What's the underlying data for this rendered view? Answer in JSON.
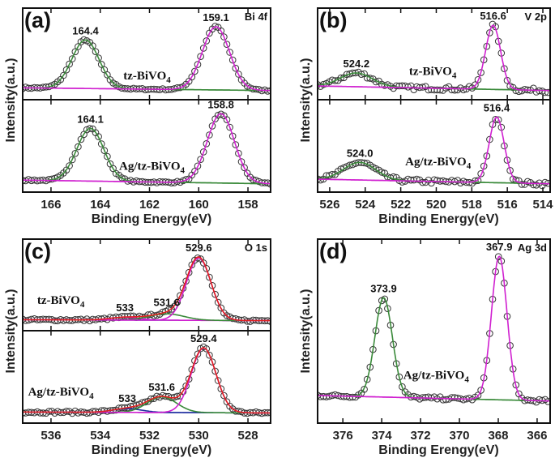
{
  "chart_data": [
    {
      "type": "line",
      "panel": "(a)",
      "element": "Bi 4f",
      "xlabel": "Binding Energy(eV)",
      "ylabel": "Intensity(a.u.)",
      "xlim": [
        167.15,
        157.08
      ],
      "xaxis_reversed": true,
      "xticks": [
        "166",
        "164",
        "162",
        "160",
        "158"
      ],
      "subplots": [
        {
          "sample": {
            "text": "tz-BiVO",
            "sub": "4"
          },
          "baseline": [
            0.13,
            0.1
          ],
          "envelope": false,
          "peaks": [
            {
              "center": 164.6,
              "height": 0.53,
              "sigma": 0.55,
              "color": "#3a8a3a",
              "label": "164.4"
            },
            {
              "center": 159.3,
              "height": 0.69,
              "sigma": 0.55,
              "color": "#d020d0",
              "label": "159.1"
            }
          ]
        },
        {
          "sample": {
            "text": "Ag/tz-BiVO",
            "sub": "4"
          },
          "baseline": [
            0.13,
            0.09
          ],
          "envelope": false,
          "peaks": [
            {
              "center": 164.4,
              "height": 0.57,
              "sigma": 0.55,
              "color": "#3a8a3a",
              "label": "164.1"
            },
            {
              "center": 159.1,
              "height": 0.75,
              "sigma": 0.55,
              "color": "#d020d0",
              "label": "158.8"
            }
          ]
        }
      ]
    },
    {
      "type": "line",
      "panel": "(b)",
      "element": "V 2p",
      "xlabel": "Binding Energy(eV)",
      "ylabel": "Intensity(a.u.)",
      "xlim": [
        526.68,
        513.59
      ],
      "xaxis_reversed": true,
      "xticks": [
        "526",
        "524",
        "522",
        "520",
        "518",
        "516",
        "514"
      ],
      "subplots": [
        {
          "sample": {
            "text": "tz-BiVO",
            "sub": "4"
          },
          "baseline": [
            0.15,
            0.1
          ],
          "envelope": false,
          "peaks": [
            {
              "center": 524.5,
              "height": 0.15,
              "sigma": 0.9,
              "color": "#3a8a3a",
              "label": "524.2"
            },
            {
              "center": 516.8,
              "height": 0.7,
              "sigma": 0.42,
              "color": "#d020d0",
              "label": "516.6"
            }
          ]
        },
        {
          "sample": {
            "text": "Ag/tz-BiVO",
            "sub": "4"
          },
          "baseline": [
            0.14,
            0.09
          ],
          "envelope": false,
          "peaks": [
            {
              "center": 524.3,
              "height": 0.19,
              "sigma": 0.9,
              "color": "#3a8a3a",
              "label": "524.0"
            },
            {
              "center": 516.6,
              "height": 0.71,
              "sigma": 0.42,
              "color": "#d020d0",
              "label": "516.4"
            }
          ]
        }
      ]
    },
    {
      "type": "line",
      "panel": "(c)",
      "element": "O 1s",
      "xlabel": "Binding Energy(eV)",
      "ylabel": "Intensity(a.u.)",
      "xlim": [
        537.15,
        527.08
      ],
      "xaxis_reversed": true,
      "xticks": [
        "536",
        "534",
        "532",
        "530",
        "528"
      ],
      "subplots": [
        {
          "sample": {
            "text": "tz-BiVO",
            "sub": "4"
          },
          "baseline": [
            0.12,
            0.11
          ],
          "envelope": true,
          "envelope_color": "#e02020",
          "baseline_color": "#2030a0",
          "peaks": [
            {
              "center": 533.0,
              "height": 0.03,
              "sigma": 0.6,
              "color": "#d020d0",
              "label": "533"
            },
            {
              "center": 531.3,
              "height": 0.07,
              "sigma": 0.7,
              "color": "#3a8a3a",
              "label": "531.6"
            },
            {
              "center": 530.0,
              "height": 0.68,
              "sigma": 0.5,
              "color": "#d020d0",
              "label": "529.6"
            }
          ]
        },
        {
          "sample": {
            "text": "Ag/tz-BiVO",
            "sub": "4"
          },
          "baseline": [
            0.12,
            0.11
          ],
          "envelope": true,
          "envelope_color": "#e02020",
          "baseline_color": "#2030a0",
          "peaks": [
            {
              "center": 532.9,
              "height": 0.04,
              "sigma": 0.6,
              "color": "#2030a0",
              "label": "533"
            },
            {
              "center": 531.5,
              "height": 0.17,
              "sigma": 0.6,
              "color": "#3a8a3a",
              "label": "531.6"
            },
            {
              "center": 529.8,
              "height": 0.7,
              "sigma": 0.5,
              "color": "#d020d0",
              "label": "529.4"
            }
          ]
        }
      ]
    },
    {
      "type": "line",
      "panel": "(d)",
      "element": "Ag 3d",
      "xlabel": "Binding Erengy(eV)",
      "ylabel": "Intensity(a.u.)",
      "xlim": [
        377.3,
        365.33
      ],
      "xaxis_reversed": true,
      "xticks": [
        "376",
        "374",
        "372",
        "370",
        "368",
        "366"
      ],
      "subplots": [
        {
          "sample": {
            "text": "Ag/tz-BiVO",
            "sub": "4"
          },
          "baseline": [
            0.15,
            0.12
          ],
          "envelope": false,
          "peaks": [
            {
              "center": 373.9,
              "height": 0.54,
              "sigma": 0.45,
              "color": "#3a8a3a",
              "label": "373.9"
            },
            {
              "center": 367.95,
              "height": 0.78,
              "sigma": 0.4,
              "color": "#d020d0",
              "label": "367.9"
            }
          ]
        }
      ]
    }
  ],
  "colors": {
    "marker": "#333333",
    "frame": "#111111"
  }
}
